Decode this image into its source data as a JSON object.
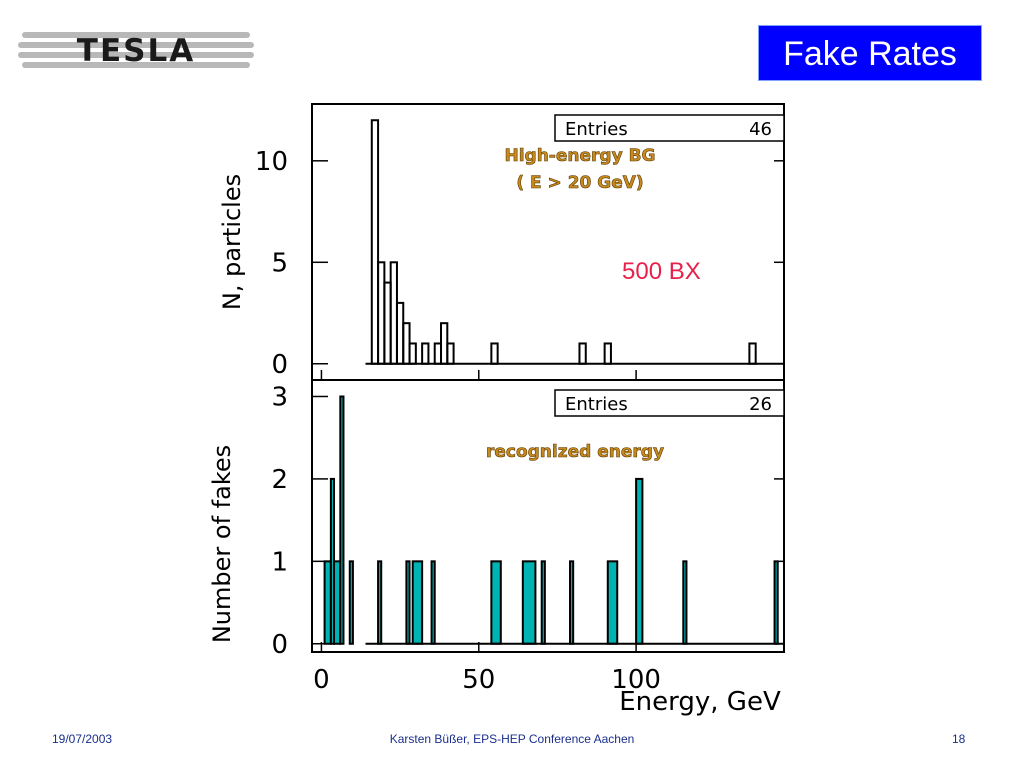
{
  "logo": {
    "text": "TESLA"
  },
  "slide": {
    "title": "Fake Rates",
    "note": "500 BX"
  },
  "footer": {
    "date": "19/07/2003",
    "center": "Karsten Büßer, EPS-HEP Conference Aachen",
    "page": "18"
  },
  "colors": {
    "accent": "#0000ff",
    "note": "#e8204a",
    "fill": "#00b3b3",
    "annotation": "#c88a1e",
    "footer": "#1a2f8c"
  },
  "chart_data": [
    {
      "type": "bar",
      "title": "",
      "xlabel": "",
      "ylabel": "N, particles",
      "xlim": [
        -3,
        147
      ],
      "ylim": [
        -0.8,
        12.8
      ],
      "yticks": [
        0,
        5,
        10
      ],
      "fill": false,
      "stats": {
        "label": "Entries",
        "value": "46"
      },
      "annotation": [
        "High-energy BG",
        "( E > 20 GeV)"
      ],
      "bins": [
        {
          "x0": 16,
          "x1": 18,
          "y": 12
        },
        {
          "x0": 18,
          "x1": 20,
          "y": 5
        },
        {
          "x0": 20,
          "x1": 22,
          "y": 4
        },
        {
          "x0": 22,
          "x1": 24,
          "y": 5
        },
        {
          "x0": 24,
          "x1": 26,
          "y": 3
        },
        {
          "x0": 26,
          "x1": 28,
          "y": 2
        },
        {
          "x0": 28,
          "x1": 30,
          "y": 1
        },
        {
          "x0": 32,
          "x1": 34,
          "y": 1
        },
        {
          "x0": 36,
          "x1": 38,
          "y": 1
        },
        {
          "x0": 38,
          "x1": 40,
          "y": 2
        },
        {
          "x0": 40,
          "x1": 42,
          "y": 1
        },
        {
          "x0": 54,
          "x1": 56,
          "y": 1
        },
        {
          "x0": 82,
          "x1": 84,
          "y": 1
        },
        {
          "x0": 90,
          "x1": 92,
          "y": 1
        },
        {
          "x0": 136,
          "x1": 138,
          "y": 1
        }
      ]
    },
    {
      "type": "bar",
      "title": "",
      "xlabel": "Energy, GeV",
      "ylabel": "Number of fakes",
      "xlim": [
        -3,
        147
      ],
      "ylim": [
        -0.1,
        3.2
      ],
      "yticks": [
        0,
        1,
        2,
        3
      ],
      "xticks": [
        0,
        50,
        100
      ],
      "fill": true,
      "stats": {
        "label": "Entries",
        "value": "26"
      },
      "annotation": [
        "recognized energy"
      ],
      "bins": [
        {
          "x0": 1,
          "x1": 3,
          "y": 1
        },
        {
          "x0": 3,
          "x1": 4,
          "y": 2
        },
        {
          "x0": 4,
          "x1": 6,
          "y": 1
        },
        {
          "x0": 6,
          "x1": 7,
          "y": 3
        },
        {
          "x0": 9,
          "x1": 10,
          "y": 1
        },
        {
          "x0": 18,
          "x1": 19,
          "y": 1
        },
        {
          "x0": 27,
          "x1": 28,
          "y": 1
        },
        {
          "x0": 29,
          "x1": 32,
          "y": 1
        },
        {
          "x0": 35,
          "x1": 36,
          "y": 1
        },
        {
          "x0": 54,
          "x1": 57,
          "y": 1
        },
        {
          "x0": 64,
          "x1": 68,
          "y": 1
        },
        {
          "x0": 70,
          "x1": 71,
          "y": 1
        },
        {
          "x0": 79,
          "x1": 80,
          "y": 1
        },
        {
          "x0": 91,
          "x1": 94,
          "y": 1
        },
        {
          "x0": 100,
          "x1": 102,
          "y": 2
        },
        {
          "x0": 115,
          "x1": 116,
          "y": 1
        },
        {
          "x0": 144,
          "x1": 145,
          "y": 1
        }
      ]
    }
  ]
}
